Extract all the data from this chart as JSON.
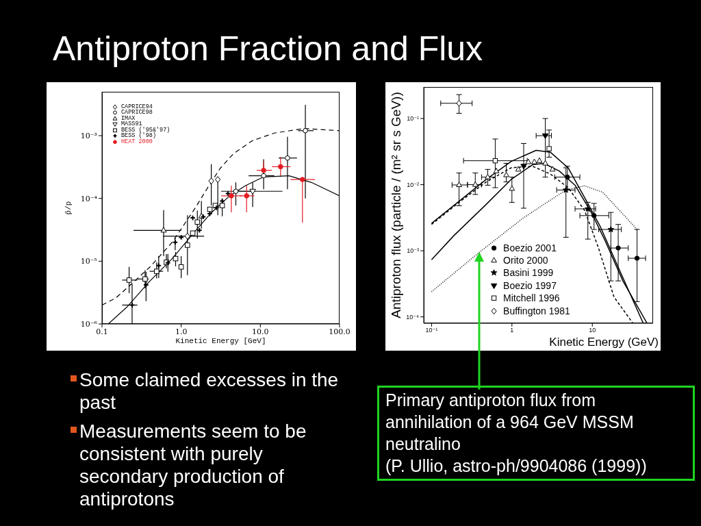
{
  "chart_data": [
    {
      "type": "other",
      "title": "Antiproton Fraction and Flux"
    },
    {
      "type": "scatter",
      "xlabel": "Kinetic Energy [GeV]",
      "ylabel": "p̄/p",
      "log": "xy",
      "xlim": [
        0.1,
        100
      ],
      "ylim": [
        1e-06,
        0.005
      ],
      "xticks": [
        0.1,
        {
          "value": 1,
          "label": "1.0"
        },
        {
          "value": 10,
          "label": "10.0"
        },
        {
          "value": 100,
          "label": "100.0"
        }
      ],
      "yticks": [
        {
          "value": 1e-06,
          "label": "10⁻⁶"
        },
        {
          "value": 1e-05,
          "label": "10⁻⁵"
        },
        {
          "value": 0.0001,
          "label": "10⁻⁴"
        },
        {
          "value": 0.001,
          "label": "10⁻³"
        }
      ],
      "legend": "top left",
      "series": [
        {
          "name": "CAPRICE94",
          "color": "#000000",
          "marker": "diamond-open",
          "x": [
            1.2,
            2.4,
            2.9
          ],
          "values": [
            2.5e-05,
            0.00019,
            0.0002
          ],
          "errors": [
            null,
            [
              7.7e-05,
              0.00035
            ],
            [
              5.4e-05,
              0.00022
            ]
          ],
          "xerrors": [
            [
              0.59,
              1.95
            ],
            null,
            null
          ]
        },
        {
          "name": "CAPRICE98",
          "color": "#000000",
          "marker": "circle-open",
          "x": [
            4.9,
            11,
            22,
            37
          ],
          "values": [
            0.00013,
            0.00023,
            0.00044,
            0.0012
          ],
          "errors": [
            [
              7.7e-05,
              0.00018
            ],
            [
              0.00014,
              0.00042
            ],
            [
              0.00014,
              0.00096
            ],
            [
              0.0001,
              0.0031
            ]
          ],
          "xerrors": [
            [
              3.2,
              7.9
            ],
            [
              7.1,
              15
            ],
            [
              17,
              29
            ],
            [
              30,
              47
            ]
          ]
        },
        {
          "name": "IMAX",
          "color": "#000000",
          "marker": "triangle-open",
          "x": [
            0.6,
            1.8
          ],
          "values": [
            3.1e-05,
            5.2e-05
          ],
          "errors": [
            [
              1.2e-05,
              6.5e-05
            ],
            [
              3.3e-05,
              9.1e-05
            ]
          ],
          "xerrors": [
            [
              0.25,
              1.0
            ],
            null
          ]
        },
        {
          "name": "MASS91",
          "color": "#000000",
          "marker": "triangle-down-open",
          "x": [
            8.0
          ],
          "values": [
            0.00013
          ],
          "errors": [
            [
              7.3e-05,
              0.00018
            ]
          ],
          "xerrors": [
            [
              4.9,
              19
            ]
          ]
        },
        {
          "name": "BESS ('95&'97)",
          "color": "#000000",
          "marker": "square-open",
          "x": [
            0.22,
            0.35,
            0.49,
            0.65,
            0.85,
            1.0,
            1.2,
            1.4,
            1.6,
            2.3,
            2.7,
            3.3
          ],
          "values": [
            5e-06,
            5.2e-06,
            6.9e-06,
            9.6e-06,
            1.1e-05,
            8.1e-06,
            1.8e-05,
            2.8e-05,
            4.2e-05,
            6.7e-05,
            7.7e-05,
            7.7e-05
          ],
          "errors": [
            [
              3.1e-06,
              8.1e-06
            ],
            [
              3.7e-06,
              7.2e-06
            ],
            [
              5.3e-06,
              9.6e-06
            ],
            [
              7.7e-06,
              1.3e-05
            ],
            [
              8.3e-06,
              1.4e-05
            ],
            [
              5.4e-06,
              1.2e-05
            ],
            [
              6e-06,
              5.4e-05
            ],
            null,
            [
              2.3e-05,
              6.4e-05
            ],
            null,
            null,
            [
              5.2e-05,
              0.0001
            ]
          ],
          "xerrors": [
            [
              0.18,
              0.28
            ],
            [
              0.28,
              0.39
            ],
            [
              0.4,
              0.59
            ],
            null,
            null,
            null,
            null,
            null,
            null,
            null,
            null,
            null
          ]
        },
        {
          "name": "BESS ('98)",
          "color": "#000000",
          "marker": "cross",
          "x": [
            0.24,
            0.36,
            0.52,
            0.68,
            0.84,
            1.0,
            1.4,
            1.7,
            1.9,
            2.3,
            2.8,
            3.3,
            3.9
          ],
          "values": [
            2e-06,
            4.2e-06,
            8.5e-06,
            9.4e-06,
            2e-05,
            2.4e-05,
            4.9e-05,
            3.1e-05,
            5.1e-05,
            5.7e-05,
            7.1e-05,
            9.1e-05,
            0.00012
          ],
          "errors": [
            [
              1e-06,
              4.3e-06
            ],
            [
              2.3e-06,
              6.8e-06
            ],
            [
              5.4e-06,
              1.2e-05
            ],
            [
              6.8e-06,
              1.3e-05
            ],
            [
              1.5e-05,
              2.4e-05
            ],
            null,
            null,
            null,
            null,
            null,
            null,
            null,
            null
          ],
          "xerrors": [
            [
              0.18,
              0.28
            ],
            null,
            null,
            null,
            null,
            null,
            null,
            null,
            null,
            null,
            null,
            null,
            null
          ]
        },
        {
          "name": "HEAT 2000",
          "color": "#e51c23",
          "marker": "circle",
          "x": [
            4.3,
            6.7,
            11,
            18,
            34
          ],
          "values": [
            0.00011,
            0.00011,
            0.00028,
            0.00032,
            0.0002
          ],
          "errors": [
            [
              6e-05,
              0.00016
            ],
            [
              6e-05,
              0.00016
            ],
            [
              0.00026,
              0.00039
            ],
            [
              0.00022,
              0.00046
            ],
            [
              4.1e-05,
              0.0002
            ]
          ],
          "xerrors": [
            [
              3.2,
              5.9
            ],
            [
              5.5,
              8.4
            ],
            [
              9.0,
              14
            ],
            [
              14,
              24
            ],
            [
              24,
              49
            ]
          ]
        },
        {
          "type": "line",
          "color": "#000000",
          "line_style": "dashed",
          "marker": "none",
          "x": [
            0.1,
            0.15,
            0.21,
            0.4,
            0.77,
            1.5,
            2.1,
            3.1,
            4.6,
            7.9,
            15,
            36,
            100
          ],
          "values": [
            2e-06,
            2.6e-06,
            3.8e-06,
            8e-06,
            2e-05,
            7e-05,
            0.00014,
            0.0003,
            0.00052,
            0.00083,
            0.0011,
            0.0013,
            0.0012
          ]
        },
        {
          "type": "line",
          "color": "#000000",
          "line_style": "solid",
          "marker": "none",
          "x": [
            0.12,
            0.21,
            0.4,
            0.77,
            1.5,
            2.4,
            4.1,
            6.5,
            11,
            23,
            44,
            100
          ],
          "values": [
            1e-06,
            1.9e-06,
            4.8e-06,
            1.1e-05,
            3e-05,
            5.9e-05,
            0.00011,
            0.00016,
            0.00022,
            0.00023,
            0.00018,
            0.00011
          ]
        }
      ]
    },
    {
      "type": "scatter",
      "xlabel": "Kinetic Energy (GeV)",
      "ylabel": "Antiproton flux (particle / (m² sr s GeV))",
      "log": "xy",
      "xlim": [
        0.08,
        57
      ],
      "ylim": [
        8e-05,
        0.3
      ],
      "xticks": [
        {
          "value": 0.1,
          "label": "10⁻¹"
        },
        1,
        10
      ],
      "yticks": [
        {
          "value": 0.0001,
          "label": "10⁻⁴"
        },
        {
          "value": 0.001,
          "label": "10⁻³"
        },
        {
          "value": 0.01,
          "label": "10⁻²"
        },
        {
          "value": 0.1,
          "label": "10⁻¹"
        }
      ],
      "legend": "bottom",
      "annotations": [
        {
          "text": "Primary antiproton flux from annihilation of a 964 GeV MSSM neutralino",
          "x": 0.39,
          "y": 0.00095
        },
        "(P. Ullio, astro-ph/9904086 (1999))"
      ],
      "series": [
        {
          "name": "Boezio 2001",
          "color": "#000000",
          "marker": "circle",
          "x": [
            4.9,
            10.5,
            21,
            36
          ],
          "values": [
            0.013,
            0.0034,
            0.0011,
            0.00077
          ],
          "errors": [
            [
              0.0083,
              0.019
            ],
            [
              0.0021,
              0.0052
            ],
            [
              0.00035,
              0.0025
            ],
            [
              0.00017,
              0.0021
            ]
          ],
          "xerrors": [
            [
              3.4,
              7.0
            ],
            [
              7.0,
              16
            ],
            [
              17,
              28
            ],
            [
              28,
              46
            ]
          ]
        },
        {
          "name": "Orito 2000",
          "color": "#000000",
          "marker": "triangle-open",
          "x": [
            0.22,
            0.35,
            0.5,
            0.64,
            0.85,
            1.0,
            1.2,
            1.6,
            1.9,
            2.2,
            2.6,
            3.2
          ],
          "values": [
            0.0099,
            0.01,
            0.013,
            0.016,
            0.014,
            0.0087,
            0.017,
            0.022,
            0.022,
            0.023,
            0.021,
            0.017
          ],
          "errors": [
            [
              0.0048,
              0.015
            ],
            [
              0.0071,
              0.015
            ],
            [
              0.0098,
              0.017
            ],
            null,
            [
              0.011,
              0.021
            ],
            [
              0.0054,
              0.013
            ],
            null,
            null,
            null,
            null,
            null,
            null
          ],
          "xerrors": [
            [
              0.18,
              0.28
            ],
            [
              0.28,
              0.42
            ],
            [
              0.42,
              0.62
            ],
            null,
            null,
            null,
            null,
            null,
            null,
            null,
            null,
            null
          ]
        },
        {
          "name": "Basini 1999",
          "color": "#000000",
          "marker": "star",
          "x": [
            4.7,
            8.8,
            17
          ],
          "values": [
            0.0083,
            0.0043,
            0.0021
          ],
          "errors": [
            [
              0.0016,
              0.018
            ],
            [
              0.0015,
              0.0054
            ],
            [
              0.00035,
              0.0038
            ]
          ],
          "xerrors": [
            [
              3.6,
              6.1
            ],
            [
              6.1,
              11
            ],
            [
              12,
              23
            ]
          ]
        },
        {
          "name": "Boezio 1997",
          "color": "#000000",
          "marker": "triangle-down",
          "x": [
            1.4,
            2.6
          ],
          "values": [
            0.019,
            0.055
          ],
          "errors": [
            [
              0.0044,
              0.042
            ],
            [
              0.013,
              0.1
            ]
          ],
          "xerrors": [
            null,
            [
              2.0,
              3.1
            ]
          ]
        },
        {
          "name": "Mitchell 1996",
          "color": "#000000",
          "marker": "square-open",
          "x": [
            0.62,
            2.9
          ],
          "values": [
            0.023,
            0.035
          ],
          "errors": [
            [
              0.009,
              0.049
            ],
            [
              0.026,
              0.067
            ]
          ],
          "xerrors": [
            [
              0.25,
              1.55
            ],
            null
          ]
        },
        {
          "name": "Buffington 1981",
          "color": "#000000",
          "marker": "diamond-open",
          "x": [
            0.22
          ],
          "values": [
            0.17
          ],
          "errors": [
            [
              0.12,
              0.23
            ]
          ],
          "xerrors": [
            [
              0.13,
              0.32
            ]
          ]
        },
        {
          "type": "line",
          "color": "#000000",
          "line_style": "solid",
          "marker": "none",
          "x": [
            0.1,
            0.22,
            0.48,
            0.98,
            2.0,
            3.0,
            5.0,
            8.5,
            12.6,
            23,
            43
          ],
          "values": [
            0.0026,
            0.0056,
            0.012,
            0.0225,
            0.033,
            0.031,
            0.018,
            0.0056,
            0.0023,
            0.00044,
            8e-05
          ]
        },
        {
          "type": "line",
          "color": "#000000",
          "line_style": "dashed",
          "marker": "none",
          "x": [
            0.1,
            0.22,
            0.48,
            0.98,
            1.8,
            3.0,
            5.0,
            8.0,
            11.8,
            18.6,
            32
          ],
          "values": [
            0.0025,
            0.0054,
            0.011,
            0.018,
            0.019,
            0.0145,
            0.009,
            0.0041,
            0.00115,
            0.0002,
            8e-05
          ]
        },
        {
          "type": "line",
          "color": "#000000",
          "line_style": "solid",
          "marker": "none",
          "x": [
            0.1,
            0.19,
            0.46,
            0.98,
            1.8,
            2.5,
            3.9,
            6.1,
            9.7,
            14.3,
            24,
            48
          ],
          "values": [
            0.00073,
            0.0017,
            0.0048,
            0.012,
            0.02,
            0.021,
            0.016,
            0.0098,
            0.0038,
            0.00145,
            0.00035,
            8e-05
          ]
        },
        {
          "type": "line",
          "color": "#000000",
          "line_style": "dotted",
          "marker": "none",
          "x": [
            0.1,
            0.39,
            1.37,
            2.6,
            4.7,
            8.0,
            13.4,
            27.5,
            36
          ],
          "values": [
            0.00024,
            0.00094,
            0.0031,
            0.0052,
            0.0083,
            0.0096,
            0.0077,
            0.003,
            0.0021
          ]
        }
      ]
    },
    {
      "type": "other",
      "annotations": [
        "Some claimed excesses in the past",
        "Measurements seem to be consistent with purely secondary production of antiprotons"
      ]
    }
  ]
}
